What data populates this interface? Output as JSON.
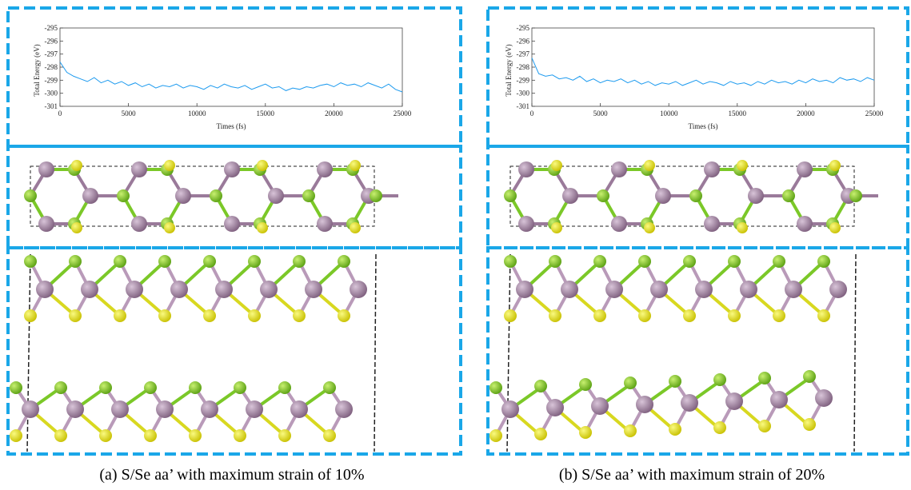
{
  "chart_data": [
    {
      "type": "line",
      "xlabel": "Times (fs)",
      "ylabel": "Total Energy (eV)",
      "caption": "(a) S/Se aa’ with maximum strain of 10%",
      "xlim": [
        0,
        25000
      ],
      "xticks": [
        0,
        5000,
        10000,
        15000,
        20000,
        25000
      ],
      "ylim": [
        -301,
        -295
      ],
      "yticks": [
        -295,
        -296,
        -297,
        -298,
        -299,
        -300,
        -301
      ],
      "x": [
        0,
        500,
        1000,
        1500,
        2000,
        2500,
        3000,
        3500,
        4000,
        4500,
        5000,
        5500,
        6000,
        6500,
        7000,
        7500,
        8000,
        8500,
        9000,
        9500,
        10000,
        10500,
        11000,
        11500,
        12000,
        12500,
        13000,
        13500,
        14000,
        14500,
        15000,
        15500,
        16000,
        16500,
        17000,
        17500,
        18000,
        18500,
        19000,
        19500,
        20000,
        20500,
        21000,
        21500,
        22000,
        22500,
        23000,
        23500,
        24000,
        24500,
        25000
      ],
      "series": [
        {
          "color": "#1e9bef",
          "values": [
            -297.6,
            -298.4,
            -298.7,
            -298.9,
            -299.1,
            -298.8,
            -299.2,
            -299.0,
            -299.3,
            -299.1,
            -299.4,
            -299.2,
            -299.5,
            -299.3,
            -299.6,
            -299.4,
            -299.5,
            -299.3,
            -299.6,
            -299.4,
            -299.5,
            -299.7,
            -299.4,
            -299.6,
            -299.3,
            -299.5,
            -299.6,
            -299.4,
            -299.7,
            -299.5,
            -299.3,
            -299.6,
            -299.5,
            -299.8,
            -299.6,
            -299.7,
            -299.5,
            -299.6,
            -299.4,
            -299.3,
            -299.5,
            -299.2,
            -299.4,
            -299.3,
            -299.5,
            -299.2,
            -299.4,
            -299.6,
            -299.3,
            -299.7,
            -299.9
          ]
        }
      ]
    },
    {
      "type": "line",
      "xlabel": "Times (fs)",
      "ylabel": "Total Energy (eV)",
      "caption": "(b) S/Se aa’ with maximum strain of 20%",
      "xlim": [
        0,
        25000
      ],
      "xticks": [
        0,
        5000,
        10000,
        15000,
        20000,
        25000
      ],
      "ylim": [
        -301,
        -295
      ],
      "yticks": [
        -295,
        -296,
        -297,
        -298,
        -299,
        -300,
        -301
      ],
      "x": [
        0,
        500,
        1000,
        1500,
        2000,
        2500,
        3000,
        3500,
        4000,
        4500,
        5000,
        5500,
        6000,
        6500,
        7000,
        7500,
        8000,
        8500,
        9000,
        9500,
        10000,
        10500,
        11000,
        11500,
        12000,
        12500,
        13000,
        13500,
        14000,
        14500,
        15000,
        15500,
        16000,
        16500,
        17000,
        17500,
        18000,
        18500,
        19000,
        19500,
        20000,
        20500,
        21000,
        21500,
        22000,
        22500,
        23000,
        23500,
        24000,
        24500,
        25000
      ],
      "series": [
        {
          "color": "#1e9bef",
          "values": [
            -297.3,
            -298.5,
            -298.7,
            -298.6,
            -298.9,
            -298.8,
            -299.0,
            -298.7,
            -299.1,
            -298.9,
            -299.2,
            -299.0,
            -299.1,
            -298.9,
            -299.2,
            -299.0,
            -299.3,
            -299.1,
            -299.4,
            -299.2,
            -299.3,
            -299.1,
            -299.4,
            -299.2,
            -299.0,
            -299.3,
            -299.1,
            -299.2,
            -299.4,
            -299.1,
            -299.3,
            -299.2,
            -299.4,
            -299.1,
            -299.3,
            -299.0,
            -299.2,
            -299.1,
            -299.3,
            -299.0,
            -299.2,
            -298.9,
            -299.1,
            -299.0,
            -299.2,
            -298.8,
            -299.0,
            -298.9,
            -299.1,
            -298.8,
            -299.0
          ]
        }
      ]
    }
  ]
}
